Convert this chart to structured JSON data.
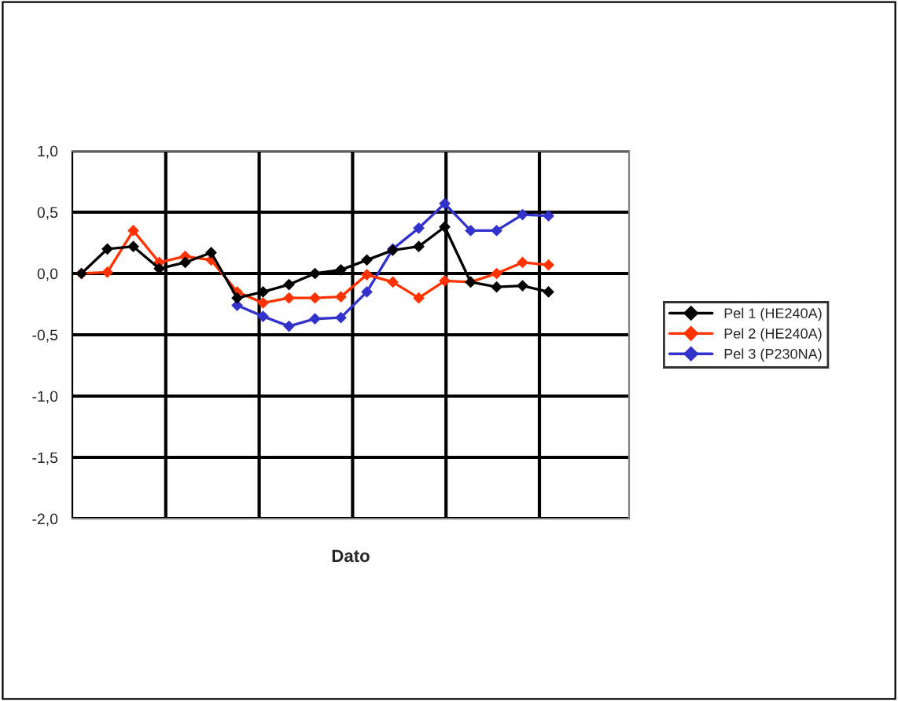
{
  "chart_data": {
    "type": "line",
    "xlabel": "Dato",
    "categories": [
      null,
      null,
      null,
      null,
      null,
      null,
      null,
      null,
      null,
      null,
      null,
      null,
      null,
      null,
      null,
      null,
      null,
      null,
      null
    ],
    "series": [
      {
        "name": "Pel 1 (HE240A)",
        "color": "#000000",
        "values": [
          0,
          0.2,
          0.22,
          0.04,
          0.09,
          0.17,
          -0.2,
          -0.15,
          -0.09,
          0,
          0.03,
          0.11,
          0.19,
          0.22,
          0.38,
          -0.07,
          -0.11,
          -0.1,
          -0.15
        ]
      },
      {
        "name": "Pel 2 (HE240A)",
        "color": "#ff3300",
        "values": [
          0,
          0.01,
          0.35,
          0.09,
          0.14,
          0.11,
          -0.15,
          -0.24,
          -0.2,
          -0.2,
          -0.19,
          -0.01,
          -0.07,
          -0.2,
          -0.06,
          -0.07,
          0,
          0.09,
          0.07
        ]
      },
      {
        "name": "Pel 3 (P230NA)",
        "color": "#3333cc",
        "values": [
          null,
          null,
          null,
          null,
          null,
          null,
          -0.26,
          -0.35,
          -0.43,
          -0.37,
          -0.36,
          -0.15,
          0.2,
          0.37,
          0.57,
          0.35,
          0.35,
          0.48,
          0.47
        ]
      }
    ],
    "ylim": [
      -2.0,
      1.0
    ],
    "yticks": [
      {
        "value": -2.0,
        "label": "-2,0"
      },
      {
        "value": -1.5,
        "label": "-1,5"
      },
      {
        "value": -1.0,
        "label": "-1,0"
      },
      {
        "value": -0.5,
        "label": "-0,5"
      },
      {
        "value": 0.0,
        "label": "0,0"
      },
      {
        "value": 0.5,
        "label": "0,5"
      },
      {
        "value": 1.0,
        "label": "1,0"
      }
    ],
    "grid": true,
    "legend": "right",
    "marker": "diamond",
    "line_style": "solid",
    "tick_labels": "y"
  }
}
